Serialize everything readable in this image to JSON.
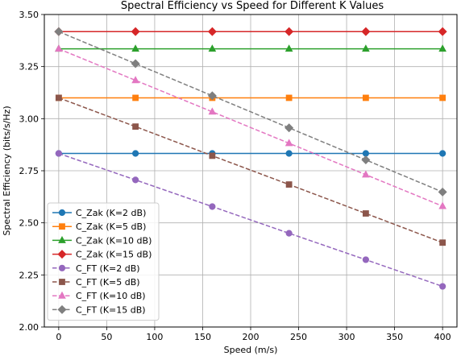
{
  "chart_data": {
    "type": "line",
    "title": "Spectral Efficiency vs Speed for Different K Values",
    "xlabel": "Speed (m/s)",
    "ylabel": "Spectral Efficiency (bits/s/Hz)",
    "xlim": [
      -15,
      415
    ],
    "ylim": [
      2.0,
      3.5
    ],
    "x_ticks": [
      0,
      50,
      100,
      150,
      200,
      250,
      300,
      350,
      400
    ],
    "x_tick_labels": [
      "0",
      "50",
      "100",
      "150",
      "200",
      "250",
      "300",
      "350",
      "400"
    ],
    "y_ticks": [
      2.0,
      2.25,
      2.5,
      2.75,
      3.0,
      3.25,
      3.5
    ],
    "y_tick_labels": [
      "2.00",
      "2.25",
      "2.50",
      "2.75",
      "3.00",
      "3.25",
      "3.50"
    ],
    "grid": true,
    "legend_position": "lower-left",
    "x": [
      0,
      80,
      160,
      240,
      320,
      400
    ],
    "series": [
      {
        "name": "C_Zak (K=2 dB)",
        "values": [
          2.833,
          2.833,
          2.833,
          2.833,
          2.833,
          2.833
        ],
        "color": "#1f77b4",
        "marker": "circle",
        "linestyle": "solid"
      },
      {
        "name": "C_Zak (K=5 dB)",
        "values": [
          3.1,
          3.1,
          3.1,
          3.1,
          3.1,
          3.1
        ],
        "color": "#ff7f0e",
        "marker": "square",
        "linestyle": "solid"
      },
      {
        "name": "C_Zak (K=10 dB)",
        "values": [
          3.335,
          3.335,
          3.335,
          3.335,
          3.335,
          3.335
        ],
        "color": "#2ca02c",
        "marker": "triangle",
        "linestyle": "solid"
      },
      {
        "name": "C_Zak (K=15 dB)",
        "values": [
          3.418,
          3.418,
          3.418,
          3.418,
          3.418,
          3.418
        ],
        "color": "#d62728",
        "marker": "diamond",
        "linestyle": "solid"
      },
      {
        "name": "C_FT (K=2 dB)",
        "values": [
          2.833,
          2.706,
          2.578,
          2.45,
          2.323,
          2.195
        ],
        "color": "#9467bd",
        "marker": "circle",
        "linestyle": "dashed"
      },
      {
        "name": "C_FT (K=5 dB)",
        "values": [
          3.1,
          2.962,
          2.822,
          2.684,
          2.545,
          2.405
        ],
        "color": "#8c564b",
        "marker": "square",
        "linestyle": "dashed"
      },
      {
        "name": "C_FT (K=10 dB)",
        "values": [
          3.335,
          3.184,
          3.033,
          2.882,
          2.731,
          2.58
        ],
        "color": "#e377c2",
        "marker": "triangle",
        "linestyle": "dashed"
      },
      {
        "name": "C_FT (K=15 dB)",
        "values": [
          3.418,
          3.264,
          3.11,
          2.956,
          2.802,
          2.648
        ],
        "color": "#7f7f7f",
        "marker": "diamond",
        "linestyle": "dashed"
      }
    ]
  }
}
